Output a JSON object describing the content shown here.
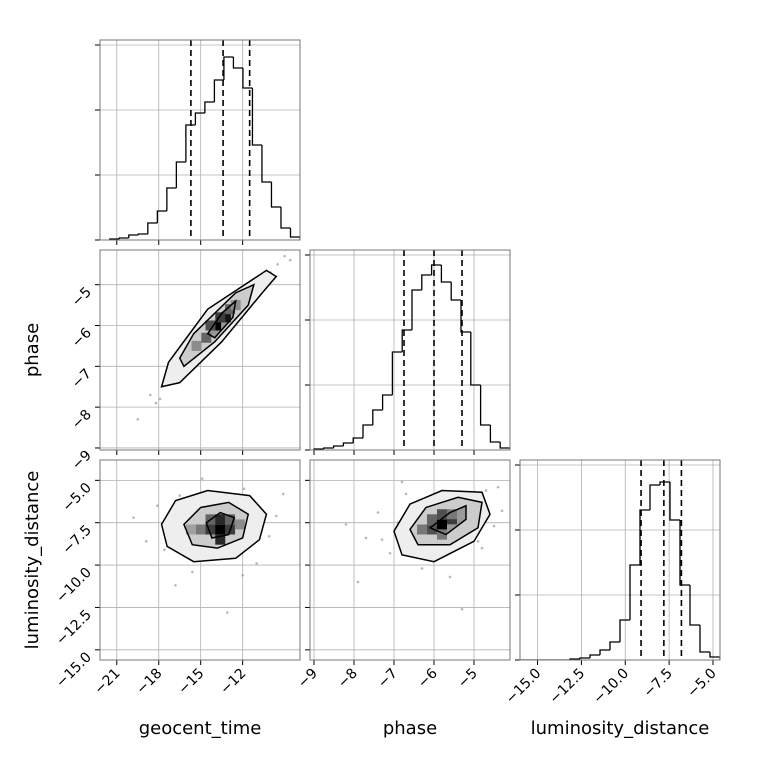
{
  "chart_data": [
    {
      "type": "histogram",
      "bins": [
        -21.5,
        -20.82,
        -20.14,
        -19.46,
        -18.78,
        -18.1,
        -17.42,
        -16.74,
        -16.06,
        -15.38,
        -14.7,
        -14.02,
        -13.34,
        -12.66,
        -11.98,
        -11.3,
        -10.62,
        -9.94,
        -9.26,
        -8.58,
        -7.9
      ],
      "counts": [
        1,
        2,
        5,
        6,
        17,
        29,
        52,
        78,
        115,
        127,
        138,
        160,
        183,
        172,
        152,
        95,
        58,
        33,
        12,
        3
      ],
      "quantiles": [
        -15.7,
        -13.4,
        -11.5
      ],
      "xlim": [
        -22.2,
        -7.9
      ],
      "xticks": [
        -21,
        -18,
        -15,
        -12
      ],
      "ylim": [
        0,
        200
      ],
      "yticks": [
        0,
        65,
        130,
        195
      ],
      "grid": true
    },
    {
      "type": "hist2d",
      "ylabel": "phase",
      "points": {
        "x": [
          -19.5,
          -18.6,
          -17.9,
          -17.2,
          -16.8,
          -16.1,
          -15.7,
          -15.2,
          -14.9,
          -14.4,
          -14.0,
          -13.7,
          -13.3,
          -13.0,
          -12.6,
          -12.2,
          -11.8,
          -11.3,
          -10.9,
          -10.4,
          -10.0,
          -9.5,
          -9.0,
          -8.6,
          -18.2,
          -16.4,
          -12.9,
          -11.0,
          -15.8,
          -13.9
        ],
        "y": [
          -8.3,
          -7.7,
          -7.8,
          -7.1,
          -7.4,
          -6.7,
          -6.9,
          -6.4,
          -6.6,
          -6.1,
          -6.2,
          -5.8,
          -5.95,
          -5.6,
          -5.7,
          -5.3,
          -5.4,
          -4.95,
          -5.1,
          -4.8,
          -4.7,
          -4.5,
          -4.3,
          -4.4,
          -7.9,
          -6.8,
          -5.9,
          -5.2,
          -7.0,
          -5.9
        ]
      },
      "cells": {
        "x": [
          -14.6,
          -13.9,
          -13.2,
          -14.3,
          -13.6,
          -12.9,
          -15.3,
          -12.5
        ],
        "y": [
          -6.3,
          -6.0,
          -5.8,
          -6.0,
          -5.8,
          -5.6,
          -6.5,
          -5.5
        ],
        "values": [
          0.5,
          1.0,
          0.9,
          0.6,
          0.7,
          0.5,
          0.3,
          0.3
        ]
      },
      "contours": [
        {
          "x": [
            -17.8,
            -17.3,
            -14.5,
            -10.3,
            -9.6,
            -10.6,
            -13.5,
            -16.5
          ],
          "y": [
            -7.5,
            -6.9,
            -5.6,
            -4.65,
            -4.8,
            -5.2,
            -6.4,
            -7.4
          ]
        },
        {
          "x": [
            -16.5,
            -15.5,
            -12.5,
            -11.2,
            -11.6,
            -14.0,
            -16.2
          ],
          "y": [
            -6.8,
            -6.2,
            -5.2,
            -5.0,
            -5.5,
            -6.4,
            -7.0
          ]
        },
        {
          "x": [
            -14.5,
            -13.5,
            -12.5,
            -12.7,
            -14.0
          ],
          "y": [
            -6.2,
            -5.7,
            -5.4,
            -5.8,
            -6.3
          ]
        }
      ],
      "xlim": [
        -22.2,
        -7.9
      ],
      "xticks": [
        -21,
        -18,
        -15,
        -12
      ],
      "ylim": [
        -9.05,
        -4.15
      ],
      "yticks": [
        {
          "value": -5,
          "label": "−5"
        },
        {
          "value": -6,
          "label": "−6"
        },
        {
          "value": -7,
          "label": "−7"
        },
        {
          "value": -8,
          "label": "−8"
        },
        {
          "value": -9,
          "label": "−9"
        }
      ],
      "grid": true
    },
    {
      "type": "histogram",
      "bins": [
        -9.0,
        -8.755,
        -8.51,
        -8.265,
        -8.02,
        -7.775,
        -7.53,
        -7.285,
        -7.04,
        -6.795,
        -6.55,
        -6.305,
        -6.06,
        -5.815,
        -5.57,
        -5.325,
        -5.08,
        -4.835,
        -4.59,
        -4.345,
        -4.1
      ],
      "counts": [
        1,
        2,
        4,
        7,
        12,
        25,
        40,
        55,
        98,
        120,
        160,
        175,
        185,
        168,
        150,
        118,
        65,
        25,
        8,
        2
      ],
      "quantiles": [
        -6.75,
        -6.0,
        -5.3
      ],
      "xlim": [
        -9.1,
        -4.1
      ],
      "xticks": [
        -9,
        -8,
        -7,
        -6,
        -5
      ],
      "ylim": [
        0,
        200
      ],
      "yticks": [
        0,
        65,
        130,
        195
      ],
      "grid": true
    },
    {
      "type": "hist2d",
      "xlabel": "geocent_time",
      "ylabel": "luminosity_distance",
      "points": {
        "x": [
          -19.8,
          -18.9,
          -18.1,
          -17.6,
          -17.0,
          -16.5,
          -16.0,
          -15.6,
          -15.1,
          -14.7,
          -14.3,
          -13.9,
          -13.5,
          -13.1,
          -12.7,
          -12.3,
          -11.9,
          -11.4,
          -11.0,
          -10.5,
          -10.1,
          -9.6,
          -9.1,
          -16.8,
          -14.9,
          -13.3,
          -12.0,
          -15.4,
          -13.6,
          -11.2
        ],
        "y": [
          -7.2,
          -8.6,
          -6.5,
          -9.1,
          -7.8,
          -5.9,
          -8.9,
          -10.4,
          -7.0,
          -6.2,
          -9.5,
          -8.1,
          -7.4,
          -12.8,
          -6.8,
          -8.7,
          -5.5,
          -7.6,
          -9.9,
          -6.9,
          -8.3,
          -7.1,
          -5.8,
          -11.2,
          -4.9,
          -7.9,
          -10.6,
          -6.6,
          -8.5,
          -7.3
        ]
      },
      "cells": {
        "x": [
          -15.0,
          -14.3,
          -13.6,
          -12.9,
          -14.3,
          -13.6,
          -12.9,
          -13.6,
          -15.7,
          -12.2
        ],
        "y": [
          -7.9,
          -7.9,
          -7.9,
          -7.9,
          -7.3,
          -7.3,
          -7.3,
          -8.5,
          -7.9,
          -7.6
        ],
        "values": [
          0.4,
          0.7,
          1.0,
          0.7,
          0.5,
          0.8,
          0.5,
          0.8,
          0.2,
          0.3
        ]
      },
      "contours": [
        {
          "x": [
            -17.8,
            -16.8,
            -14.5,
            -11.5,
            -10.3,
            -10.8,
            -12.5,
            -15.5,
            -17.4
          ],
          "y": [
            -7.6,
            -6.2,
            -5.6,
            -5.9,
            -7.0,
            -8.5,
            -9.6,
            -9.8,
            -8.9
          ]
        },
        {
          "x": [
            -16.2,
            -15.0,
            -13.0,
            -11.6,
            -12.0,
            -13.8,
            -15.6
          ],
          "y": [
            -7.6,
            -6.6,
            -6.3,
            -7.0,
            -8.4,
            -9.0,
            -8.8
          ]
        },
        {
          "x": [
            -14.6,
            -13.6,
            -12.6,
            -13.0,
            -14.2
          ],
          "y": [
            -7.5,
            -6.9,
            -7.2,
            -8.2,
            -8.4
          ]
        }
      ],
      "xlim": [
        -22.2,
        -7.9
      ],
      "xticks": [
        {
          "value": -21,
          "label": "−21"
        },
        {
          "value": -18,
          "label": "−18"
        },
        {
          "value": -15,
          "label": "−15"
        },
        {
          "value": -12,
          "label": "−12"
        }
      ],
      "ylim": [
        -15.6,
        -3.8
      ],
      "yticks": [
        {
          "value": -5,
          "label": "−5.0"
        },
        {
          "value": -7.5,
          "label": "−7.5"
        },
        {
          "value": -10,
          "label": "−10.0"
        },
        {
          "value": -12.5,
          "label": "−12.5"
        },
        {
          "value": -15,
          "label": "−15.0"
        }
      ],
      "grid": true
    },
    {
      "type": "hist2d",
      "xlabel": "phase",
      "points": {
        "x": [
          -8.2,
          -7.7,
          -7.4,
          -7.1,
          -6.9,
          -6.7,
          -6.5,
          -6.3,
          -6.1,
          -6.0,
          -5.8,
          -5.7,
          -5.5,
          -5.3,
          -5.1,
          -4.9,
          -4.7,
          -4.5,
          -4.3,
          -7.9,
          -6.8,
          -6.2,
          -5.6,
          -5.2,
          -4.8,
          -6.4,
          -5.9,
          -5.4,
          -7.3,
          -4.4
        ],
        "y": [
          -7.6,
          -8.4,
          -6.9,
          -9.3,
          -7.5,
          -5.8,
          -8.8,
          -10.2,
          -7.1,
          -6.3,
          -9.4,
          -8.0,
          -7.3,
          -12.6,
          -6.7,
          -8.6,
          -5.6,
          -7.7,
          -6.8,
          -11.0,
          -5.1,
          -8.2,
          -10.7,
          -6.5,
          -9.0,
          -7.9,
          -7.4,
          -6.1,
          -8.5,
          -5.4
        ]
      },
      "cells": {
        "x": [
          -6.3,
          -6.05,
          -5.8,
          -5.55,
          -6.05,
          -5.8,
          -5.55,
          -5.8
        ],
        "y": [
          -7.9,
          -7.9,
          -7.6,
          -7.3,
          -7.3,
          -7.0,
          -7.0,
          -8.2
        ],
        "values": [
          0.4,
          0.6,
          1.0,
          0.7,
          0.5,
          0.6,
          0.4,
          0.4
        ]
      },
      "contours": [
        {
          "x": [
            -7.0,
            -6.6,
            -5.8,
            -4.8,
            -4.6,
            -5.0,
            -6.0,
            -6.8
          ],
          "y": [
            -8.0,
            -6.4,
            -5.6,
            -5.7,
            -7.0,
            -8.6,
            -9.8,
            -9.4
          ]
        },
        {
          "x": [
            -6.6,
            -6.2,
            -5.4,
            -4.8,
            -4.9,
            -5.6,
            -6.4
          ],
          "y": [
            -7.9,
            -6.6,
            -6.0,
            -6.3,
            -7.8,
            -8.8,
            -8.8
          ]
        },
        {
          "x": [
            -6.1,
            -5.6,
            -5.2,
            -5.2,
            -5.7
          ],
          "y": [
            -7.8,
            -6.9,
            -6.5,
            -7.3,
            -8.2
          ]
        }
      ],
      "xlim": [
        -9.1,
        -4.1
      ],
      "xticks": [
        {
          "value": -9,
          "label": "−9"
        },
        {
          "value": -8,
          "label": "−8"
        },
        {
          "value": -7,
          "label": "−7"
        },
        {
          "value": -6,
          "label": "−6"
        },
        {
          "value": -5,
          "label": "−5"
        }
      ],
      "ylim": [
        -15.6,
        -3.8
      ],
      "yticks": [
        -15,
        -12.5,
        -10,
        -7.5,
        -5
      ],
      "grid": true
    },
    {
      "type": "histogram",
      "xlabel": "luminosity_distance",
      "bins": [
        -16.0,
        -15.43,
        -14.86,
        -14.29,
        -13.72,
        -13.15,
        -12.58,
        -12.01,
        -11.44,
        -10.87,
        -10.3,
        -9.73,
        -9.16,
        -8.59,
        -8.02,
        -7.45,
        -6.88,
        -6.31,
        -5.74,
        -5.17,
        -4.6
      ],
      "counts": [
        0,
        0,
        0,
        0,
        0,
        1,
        2,
        5,
        10,
        18,
        40,
        95,
        150,
        175,
        178,
        140,
        75,
        35,
        8,
        3
      ],
      "quantiles": [
        -9.1,
        -7.8,
        -6.8
      ],
      "xlim": [
        -16.0,
        -4.6
      ],
      "xticks": [
        {
          "value": -15,
          "label": "−15.0"
        },
        {
          "value": -12.5,
          "label": "−12.5"
        },
        {
          "value": -10,
          "label": "−10.0"
        },
        {
          "value": -7.5,
          "label": "−7.5"
        },
        {
          "value": -5,
          "label": "−5.0"
        }
      ],
      "ylim": [
        0,
        200
      ],
      "yticks": [
        0,
        65,
        130,
        195
      ],
      "grid": true
    }
  ]
}
